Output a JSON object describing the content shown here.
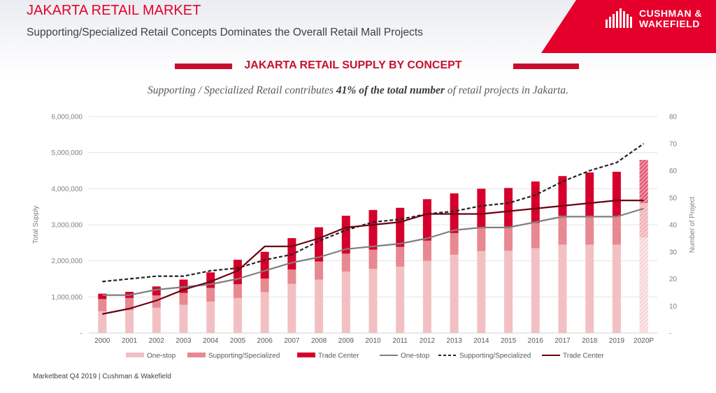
{
  "header": {
    "title": "JAKARTA RETAIL MARKET",
    "subtitle": "Supporting/Specialized Retail Concepts Dominates the Overall Retail Mall Projects"
  },
  "brand": {
    "line1": "CUSHMAN &",
    "line2": "WAKEFIELD",
    "color": "#e4002b"
  },
  "section": {
    "title": "JAKARTA RETAIL SUPPLY BY CONCEPT",
    "caption_pre": "Supporting / Specialized Retail contributes ",
    "caption_bold": "41% of the total number",
    "caption_post": " of retail projects in Jakarta."
  },
  "footer": {
    "text": "Marketbeat Q4 2019 |  Cushman & Wakefield"
  },
  "chart_data": {
    "type": "bar",
    "stacked": true,
    "combo": "stacked bars with lines on secondary axis",
    "categories": [
      "2000",
      "2001",
      "2002",
      "2003",
      "2004",
      "2005",
      "2006",
      "2007",
      "2008",
      "2009",
      "2010",
      "2011",
      "2012",
      "2013",
      "2014",
      "2015",
      "2016",
      "2017",
      "2018",
      "2019",
      "2020P"
    ],
    "ylabel": "Total Supply",
    "y2label": "Number of Project",
    "ylim": [
      0,
      6000000
    ],
    "y2lim": [
      0,
      80
    ],
    "yticks": [
      "-",
      "1,000,000",
      "2,000,000",
      "3,000,000",
      "4,000,000",
      "5,000,000",
      "6,000,000"
    ],
    "y2ticks": [
      "-",
      "10",
      "20",
      "30",
      "40",
      "50",
      "60",
      "70",
      "80"
    ],
    "grid": true,
    "legend_position": "bottom",
    "series": [
      {
        "name": "One-stop",
        "kind": "bar",
        "axis": "left",
        "color": "#f2c0c3",
        "values": [
          600000,
          630000,
          700000,
          780000,
          870000,
          970000,
          1130000,
          1360000,
          1480000,
          1700000,
          1780000,
          1840000,
          2000000,
          2170000,
          2270000,
          2280000,
          2350000,
          2450000,
          2450000,
          2450000,
          2650000
        ]
      },
      {
        "name": "Supporting/Specialized",
        "kind": "bar",
        "axis": "left",
        "color": "#e88891",
        "values": [
          340000,
          340000,
          340000,
          330000,
          380000,
          380000,
          380000,
          400000,
          500000,
          500000,
          530000,
          550000,
          560000,
          600000,
          650000,
          670000,
          700000,
          800000,
          800000,
          800000,
          950000
        ]
      },
      {
        "name": "Trade Center",
        "kind": "bar",
        "axis": "left",
        "color": "#d5002b",
        "values": [
          150000,
          170000,
          250000,
          370000,
          430000,
          680000,
          740000,
          870000,
          950000,
          1050000,
          1100000,
          1080000,
          1150000,
          1100000,
          1080000,
          1070000,
          1150000,
          1100000,
          1200000,
          1220000,
          1200000
        ]
      },
      {
        "name": "One-stop",
        "kind": "line",
        "axis": "right",
        "color": "#7f7f7f",
        "dash": "solid",
        "values": [
          14,
          14,
          16,
          17,
          18,
          20,
          23,
          26,
          28,
          31,
          32,
          33,
          35,
          38,
          39,
          39,
          41,
          43,
          43,
          43,
          46
        ]
      },
      {
        "name": "Supporting/Specialized",
        "kind": "line",
        "axis": "right",
        "color": "#222222",
        "dash": "dashed",
        "values": [
          19,
          20,
          21,
          21,
          23,
          24,
          27,
          29,
          34,
          38,
          41,
          42,
          44,
          45,
          47,
          48,
          51,
          56,
          60,
          63,
          70
        ]
      },
      {
        "name": "Trade Center",
        "kind": "line",
        "axis": "right",
        "color": "#6b0012",
        "dash": "solid",
        "values": [
          7,
          9,
          12,
          16,
          19,
          23,
          32,
          32,
          35,
          39,
          40,
          41,
          44,
          44,
          44,
          45,
          46,
          47,
          48,
          49,
          49
        ]
      }
    ]
  }
}
